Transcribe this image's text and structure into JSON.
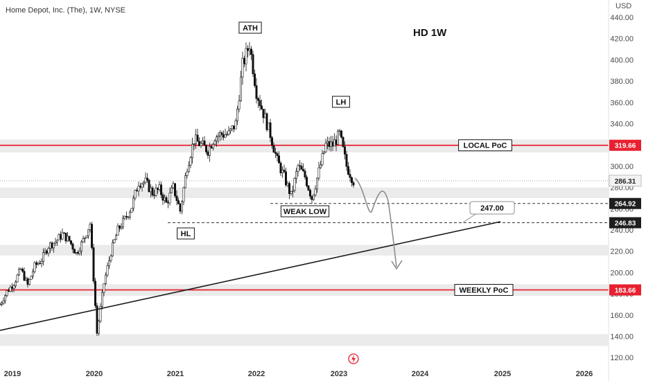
{
  "header": {
    "symbol": "Home Depot, Inc. (The), 1W, NYSE",
    "title": "HD 1W",
    "currency": "USD"
  },
  "colors": {
    "up": "#ffffff",
    "down": "#111111",
    "resistance": "#e8202f",
    "zone": "#ebebeb",
    "trendline": "#1a1a1a",
    "projection": "#8c8c8c"
  },
  "chart_data": {
    "type": "candlestick",
    "title": "HD 1W",
    "xlabel": "",
    "ylabel": "USD",
    "ylim": [
      113,
      446
    ],
    "x_ticks": [
      "2019",
      "2020",
      "2021",
      "2022",
      "2023",
      "2024",
      "2025",
      "2026"
    ],
    "y_ticks": [
      "120.00",
      "140.00",
      "160.00",
      "180.00",
      "200.00",
      "220.00",
      "240.00",
      "260.00",
      "280.00",
      "300.00",
      "320.00",
      "340.00",
      "360.00",
      "380.00",
      "400.00",
      "420.00",
      "440.00"
    ],
    "series": [
      {
        "points": [
          {
            "date": "2019-01",
            "close": 170
          },
          {
            "date": "2019-02",
            "close": 182
          },
          {
            "date": "2019-03",
            "close": 190
          },
          {
            "date": "2019-04",
            "close": 203
          },
          {
            "date": "2019-05",
            "close": 188
          },
          {
            "date": "2019-06",
            "close": 206
          },
          {
            "date": "2019-07",
            "close": 212
          },
          {
            "date": "2019-08",
            "close": 225
          },
          {
            "date": "2019-09",
            "close": 229
          },
          {
            "date": "2019-10",
            "close": 236
          },
          {
            "date": "2019-11",
            "close": 230
          },
          {
            "date": "2019-12",
            "close": 218
          },
          {
            "date": "2020-01",
            "close": 230
          },
          {
            "date": "2020-02",
            "close": 246
          },
          {
            "date": "2020-03",
            "close": 143
          },
          {
            "date": "2020-03b",
            "close": 190
          },
          {
            "date": "2020-04",
            "close": 219
          },
          {
            "date": "2020-05",
            "close": 240
          },
          {
            "date": "2020-06",
            "close": 250
          },
          {
            "date": "2020-07",
            "close": 262
          },
          {
            "date": "2020-08",
            "close": 285
          },
          {
            "date": "2020-09",
            "close": 285
          },
          {
            "date": "2020-10",
            "close": 275
          },
          {
            "date": "2020-11",
            "close": 278
          },
          {
            "date": "2020-12",
            "close": 265
          },
          {
            "date": "2021-01",
            "close": 280
          },
          {
            "date": "2021-02",
            "close": 258
          },
          {
            "date": "2021-03",
            "close": 300
          },
          {
            "date": "2021-04",
            "close": 325
          },
          {
            "date": "2021-05",
            "close": 320
          },
          {
            "date": "2021-06",
            "close": 315
          },
          {
            "date": "2021-07",
            "close": 328
          },
          {
            "date": "2021-08",
            "close": 330
          },
          {
            "date": "2021-09",
            "close": 330
          },
          {
            "date": "2021-10",
            "close": 340
          },
          {
            "date": "2021-11",
            "close": 395
          },
          {
            "date": "2021-12",
            "close": 415
          },
          {
            "date": "2022-01",
            "close": 370
          },
          {
            "date": "2022-02",
            "close": 350
          },
          {
            "date": "2022-03",
            "close": 330
          },
          {
            "date": "2022-04",
            "close": 305
          },
          {
            "date": "2022-05",
            "close": 290
          },
          {
            "date": "2022-06",
            "close": 272
          },
          {
            "date": "2022-07",
            "close": 300
          },
          {
            "date": "2022-08",
            "close": 290
          },
          {
            "date": "2022-09",
            "close": 270
          },
          {
            "date": "2022-10",
            "close": 295
          },
          {
            "date": "2022-11",
            "close": 320
          },
          {
            "date": "2022-12",
            "close": 320
          },
          {
            "date": "2023-01",
            "close": 330
          },
          {
            "date": "2023-02",
            "close": 300
          },
          {
            "date": "2023-03",
            "close": 286
          }
        ]
      }
    ],
    "horizontal_levels": [
      {
        "label": "LOCAL PoC",
        "value": 319.66,
        "badge": "319.66",
        "style": "red-solid"
      },
      {
        "label": "WEEKLY PoC",
        "value": 183.66,
        "badge": "183.66",
        "style": "red-solid"
      },
      {
        "label": "",
        "value": 264.92,
        "badge": "264.92",
        "style": "dashed"
      },
      {
        "label": "",
        "value": 246.83,
        "badge": "246.83",
        "style": "dashed"
      }
    ],
    "last_price": {
      "value": 286.31,
      "badge": "286.31"
    },
    "target": {
      "value": 247.0,
      "label": "247.00"
    },
    "annotations": [
      "ATH",
      "LH",
      "HL",
      "WEAK LOW"
    ]
  }
}
